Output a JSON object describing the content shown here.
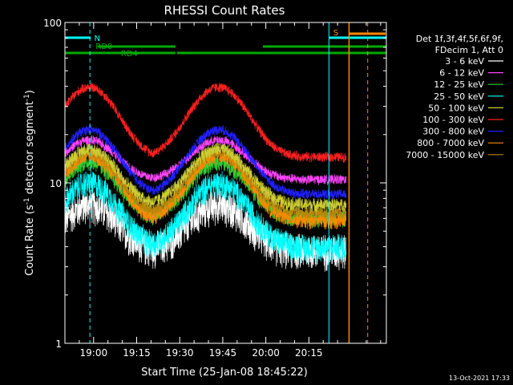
{
  "chart_data": {
    "type": "line",
    "title": "RHESSI Count Rates",
    "xlabel": "Start Time (25-Jan-08 18:45:22)",
    "ylabel_main": "Count Rate (s",
    "ylabel_sup": "-1",
    "ylabel_mid": " detector segment",
    "ylabel_sup2": "-1",
    "ylabel_end": ")",
    "yscale": "log",
    "ylim": [
      1,
      100
    ],
    "xlim_minutes": [
      -10,
      102
    ],
    "x_ticks": [
      {
        "minute": 0,
        "label": "19:00"
      },
      {
        "minute": 15,
        "label": "19:15"
      },
      {
        "minute": 30,
        "label": "19:30"
      },
      {
        "minute": 45,
        "label": "19:45"
      },
      {
        "minute": 60,
        "label": "20:00"
      },
      {
        "minute": 75,
        "label": "20:15"
      }
    ],
    "y_ticks": [
      {
        "value": 100,
        "label": "100"
      },
      {
        "value": 10,
        "label": "10"
      },
      {
        "value": 1,
        "label": "1"
      }
    ],
    "timestamp": "13-Oct-2021 17:33",
    "legend_header": [
      "Det 1f,3f,4f,5f,6f,9f,",
      "FDecim 1, Att 0"
    ],
    "series": [
      {
        "name": "3 - 6 keV",
        "color": "#ffffff",
        "base": 3.8,
        "amp": 3.5,
        "noise": 0.18
      },
      {
        "name": "6 - 12 keV",
        "color": "#ff44ff",
        "base": 10.5,
        "amp": 8.0,
        "noise": 0.05
      },
      {
        "name": "12 - 25 keV",
        "color": "#33cc33",
        "base": 6.0,
        "amp": 7.5,
        "noise": 0.09
      },
      {
        "name": "25 - 50 keV",
        "color": "#00ffff",
        "base": 4.0,
        "amp": 6.0,
        "noise": 0.14
      },
      {
        "name": "50 - 100 keV",
        "color": "#cccc33",
        "base": 7.3,
        "amp": 9.0,
        "noise": 0.07
      },
      {
        "name": "100 - 300 keV",
        "color": "#ff2020",
        "base": 14.5,
        "amp": 25.0,
        "noise": 0.05
      },
      {
        "name": "300 - 800 keV",
        "color": "#2020ff",
        "base": 8.5,
        "amp": 13.0,
        "noise": 0.05
      },
      {
        "name": "800 - 7000 keV",
        "color": "#ff8800",
        "base": 5.8,
        "amp": 9.0,
        "noise": 0.08
      },
      {
        "name": "7000 - 15000 keV",
        "color": "#b8860b",
        "base": 6.5,
        "amp": 9.0,
        "noise": 0.06
      }
    ],
    "peaks_minutes": [
      -1.5,
      43.5
    ],
    "end_minute": 88,
    "annotations": [
      {
        "label": "N",
        "color": "#00ffff"
      },
      {
        "label": "RD0",
        "color": "#00aa00"
      },
      {
        "label": "RD4",
        "color": "#00aa00"
      },
      {
        "label": "S",
        "color": "#ff8800"
      }
    ]
  }
}
